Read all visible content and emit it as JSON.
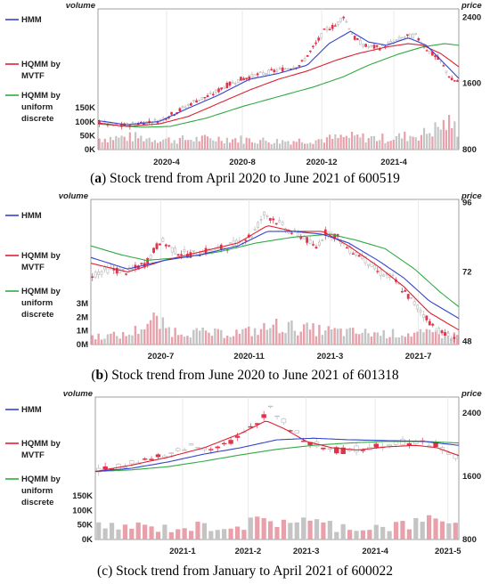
{
  "chart_data": [
    {
      "type": "candlestick",
      "panel_label": "a",
      "caption": "Stock trend from April 2020 to June 2021 of 600519",
      "volume_label": "volume",
      "price_label": "price",
      "legend": [
        "HMM",
        "HQMM by MVTF",
        "HQMM by uniform discrete"
      ],
      "colors": {
        "HMM": "#3344cc",
        "HQMM by MVTF": "#dd2233",
        "HQMM by uniform discrete": "#33aa44",
        "up": "#e0334a",
        "down": "#b8b8b8",
        "volume_up": "#e8a0aa",
        "volume_down": "#c4c4c4"
      },
      "x_ticks": [
        "2020-4",
        "2020-8",
        "2020-12",
        "2021-4"
      ],
      "x_tick_pos": [
        0.19,
        0.4,
        0.62,
        0.82
      ],
      "price_ticks": [
        "2400",
        "1600",
        "800"
      ],
      "price_tick_values": [
        2400,
        1600,
        800
      ],
      "price_range": [
        800,
        2500
      ],
      "volume_ticks": [
        "150K",
        "100K",
        "50K",
        "0K"
      ],
      "volume_tick_values": [
        150,
        100,
        50,
        0
      ],
      "volume_range": [
        0,
        160
      ],
      "price_path": [
        [
          0,
          1130
        ],
        [
          0.06,
          1080
        ],
        [
          0.1,
          1110
        ],
        [
          0.17,
          1150
        ],
        [
          0.22,
          1260
        ],
        [
          0.27,
          1390
        ],
        [
          0.31,
          1450
        ],
        [
          0.35,
          1560
        ],
        [
          0.39,
          1640
        ],
        [
          0.44,
          1700
        ],
        [
          0.5,
          1760
        ],
        [
          0.56,
          1820
        ],
        [
          0.6,
          2050
        ],
        [
          0.63,
          2250
        ],
        [
          0.66,
          2300
        ],
        [
          0.68,
          2420
        ],
        [
          0.71,
          2150
        ],
        [
          0.74,
          2050
        ],
        [
          0.78,
          2030
        ],
        [
          0.82,
          2100
        ],
        [
          0.85,
          2160
        ],
        [
          0.88,
          2180
        ],
        [
          0.91,
          2020
        ],
        [
          0.95,
          1860
        ],
        [
          0.98,
          1640
        ],
        [
          1,
          1620
        ]
      ],
      "hmm_path": [
        [
          0,
          1150
        ],
        [
          0.08,
          1100
        ],
        [
          0.17,
          1140
        ],
        [
          0.25,
          1300
        ],
        [
          0.33,
          1450
        ],
        [
          0.42,
          1650
        ],
        [
          0.5,
          1720
        ],
        [
          0.58,
          1820
        ],
        [
          0.64,
          2080
        ],
        [
          0.7,
          2230
        ],
        [
          0.75,
          2100
        ],
        [
          0.8,
          2060
        ],
        [
          0.86,
          2150
        ],
        [
          0.91,
          2060
        ],
        [
          0.96,
          1840
        ],
        [
          1,
          1660
        ]
      ],
      "mvtf_path": [
        [
          0,
          1120
        ],
        [
          0.08,
          1080
        ],
        [
          0.17,
          1110
        ],
        [
          0.25,
          1200
        ],
        [
          0.33,
          1350
        ],
        [
          0.42,
          1520
        ],
        [
          0.5,
          1650
        ],
        [
          0.58,
          1750
        ],
        [
          0.66,
          1880
        ],
        [
          0.72,
          1960
        ],
        [
          0.8,
          2040
        ],
        [
          0.86,
          2080
        ],
        [
          0.9,
          2060
        ],
        [
          0.95,
          1960
        ],
        [
          1,
          1800
        ]
      ],
      "uniform_path": [
        [
          0,
          1110
        ],
        [
          0.12,
          1070
        ],
        [
          0.2,
          1080
        ],
        [
          0.3,
          1180
        ],
        [
          0.4,
          1320
        ],
        [
          0.5,
          1440
        ],
        [
          0.6,
          1560
        ],
        [
          0.68,
          1680
        ],
        [
          0.75,
          1820
        ],
        [
          0.83,
          1950
        ],
        [
          0.9,
          2040
        ],
        [
          0.96,
          2080
        ],
        [
          1,
          2060
        ]
      ],
      "volume_profile": [
        [
          0,
          40
        ],
        [
          0.1,
          45
        ],
        [
          0.2,
          35
        ],
        [
          0.35,
          40
        ],
        [
          0.5,
          30
        ],
        [
          0.6,
          35
        ],
        [
          0.7,
          45
        ],
        [
          0.8,
          40
        ],
        [
          0.9,
          55
        ],
        [
          0.97,
          95
        ],
        [
          1,
          70
        ]
      ]
    },
    {
      "type": "candlestick",
      "panel_label": "b",
      "caption": "Stock trend from June 2020 to June 2021 of 601318",
      "volume_label": "volume",
      "price_label": "price",
      "legend": [
        "HMM",
        "HQMM by MVTF",
        "HQMM by uniform discrete"
      ],
      "colors": {
        "HMM": "#3344cc",
        "HQMM by MVTF": "#dd2233",
        "HQMM by uniform discrete": "#33aa44",
        "up": "#e0334a",
        "down": "#b8b8b8",
        "volume_up": "#e8a0aa",
        "volume_down": "#c4c4c4"
      },
      "x_ticks": [
        "2020-7",
        "2020-11",
        "2021-3",
        "2021-7"
      ],
      "x_tick_pos": [
        0.19,
        0.43,
        0.65,
        0.89
      ],
      "price_ticks": [
        "96",
        "72",
        "48"
      ],
      "price_tick_values": [
        96,
        72,
        48
      ],
      "price_range": [
        47,
        97
      ],
      "volume_ticks": [
        "3M",
        "2M",
        "1M",
        "0M"
      ],
      "volume_tick_values": [
        3,
        2,
        1,
        0
      ],
      "volume_range": [
        0,
        3.6
      ],
      "price_path": [
        [
          0,
          71
        ],
        [
          0.05,
          73
        ],
        [
          0.1,
          72
        ],
        [
          0.15,
          75
        ],
        [
          0.19,
          83
        ],
        [
          0.23,
          79
        ],
        [
          0.27,
          78
        ],
        [
          0.31,
          79
        ],
        [
          0.35,
          80
        ],
        [
          0.4,
          82
        ],
        [
          0.44,
          85
        ],
        [
          0.47,
          92
        ],
        [
          0.5,
          90
        ],
        [
          0.54,
          86
        ],
        [
          0.58,
          84
        ],
        [
          0.61,
          80
        ],
        [
          0.64,
          86
        ],
        [
          0.67,
          84
        ],
        [
          0.7,
          80
        ],
        [
          0.74,
          77
        ],
        [
          0.78,
          72
        ],
        [
          0.82,
          70
        ],
        [
          0.86,
          64
        ],
        [
          0.9,
          58
        ],
        [
          0.94,
          52
        ],
        [
          0.97,
          50
        ],
        [
          1,
          49
        ]
      ],
      "hmm_path": [
        [
          0,
          77
        ],
        [
          0.1,
          73
        ],
        [
          0.2,
          76
        ],
        [
          0.3,
          78
        ],
        [
          0.4,
          81
        ],
        [
          0.48,
          86
        ],
        [
          0.55,
          86
        ],
        [
          0.63,
          85
        ],
        [
          0.7,
          82
        ],
        [
          0.78,
          76
        ],
        [
          0.85,
          70
        ],
        [
          0.92,
          62
        ],
        [
          1,
          56
        ]
      ],
      "mvtf_path": [
        [
          0,
          75
        ],
        [
          0.1,
          72
        ],
        [
          0.2,
          76
        ],
        [
          0.3,
          79
        ],
        [
          0.4,
          82
        ],
        [
          0.48,
          88
        ],
        [
          0.55,
          86
        ],
        [
          0.63,
          86
        ],
        [
          0.7,
          81
        ],
        [
          0.78,
          74
        ],
        [
          0.85,
          67
        ],
        [
          0.92,
          58
        ],
        [
          1,
          52
        ]
      ],
      "uniform_path": [
        [
          0,
          81
        ],
        [
          0.08,
          78
        ],
        [
          0.15,
          76
        ],
        [
          0.25,
          77
        ],
        [
          0.35,
          79
        ],
        [
          0.45,
          82
        ],
        [
          0.55,
          84
        ],
        [
          0.65,
          85
        ],
        [
          0.72,
          83
        ],
        [
          0.8,
          80
        ],
        [
          0.88,
          73
        ],
        [
          0.95,
          65
        ],
        [
          1,
          60
        ]
      ],
      "volume_profile": [
        [
          0,
          0.6
        ],
        [
          0.1,
          0.7
        ],
        [
          0.17,
          1.8
        ],
        [
          0.22,
          1.0
        ],
        [
          0.35,
          0.8
        ],
        [
          0.45,
          1.0
        ],
        [
          0.5,
          1.4
        ],
        [
          0.6,
          1.1
        ],
        [
          0.7,
          0.9
        ],
        [
          0.8,
          0.8
        ],
        [
          0.9,
          0.8
        ],
        [
          1,
          0.7
        ]
      ]
    },
    {
      "type": "candlestick",
      "panel_label": "c",
      "caption": "Stock trend from January to April 2021 of 600022",
      "volume_label": "volume",
      "price_label": "price",
      "legend": [
        "HMM",
        "HQMM by MVTF",
        "HQMM by uniform discrete"
      ],
      "colors": {
        "HMM": "#3344cc",
        "HQMM by MVTF": "#dd2233",
        "HQMM by uniform discrete": "#33aa44",
        "up": "#e0334a",
        "down": "#b8b8b8",
        "volume_up": "#e8a0aa",
        "volume_down": "#c4c4c4"
      },
      "x_ticks": [
        "2021-1",
        "2021-2",
        "2021-3",
        "2021-4",
        "2021-5"
      ],
      "x_tick_pos": [
        0.24,
        0.42,
        0.58,
        0.77,
        0.97
      ],
      "price_ticks": [
        "2400",
        "1600",
        "800"
      ],
      "price_tick_values": [
        2400,
        1600,
        800
      ],
      "price_range": [
        800,
        2600
      ],
      "volume_ticks": [
        "150K",
        "100K",
        "50K",
        "0K"
      ],
      "volume_tick_values": [
        150,
        100,
        50,
        0
      ],
      "volume_range": [
        0,
        165
      ],
      "price_path": [
        [
          0,
          1660
        ],
        [
          0.05,
          1700
        ],
        [
          0.1,
          1780
        ],
        [
          0.15,
          1820
        ],
        [
          0.2,
          1840
        ],
        [
          0.25,
          1980
        ],
        [
          0.3,
          1960
        ],
        [
          0.35,
          2000
        ],
        [
          0.4,
          2100
        ],
        [
          0.45,
          2280
        ],
        [
          0.48,
          2500
        ],
        [
          0.51,
          2320
        ],
        [
          0.55,
          2150
        ],
        [
          0.59,
          2020
        ],
        [
          0.63,
          1960
        ],
        [
          0.67,
          1920
        ],
        [
          0.71,
          1930
        ],
        [
          0.75,
          1970
        ],
        [
          0.8,
          2010
        ],
        [
          0.85,
          2040
        ],
        [
          0.9,
          2010
        ],
        [
          0.94,
          2000
        ],
        [
          0.97,
          1880
        ],
        [
          1,
          1840
        ]
      ],
      "hmm_path": [
        [
          0,
          1660
        ],
        [
          0.1,
          1700
        ],
        [
          0.2,
          1780
        ],
        [
          0.3,
          1880
        ],
        [
          0.4,
          1960
        ],
        [
          0.5,
          2060
        ],
        [
          0.6,
          2080
        ],
        [
          0.7,
          2060
        ],
        [
          0.8,
          2050
        ],
        [
          0.9,
          2040
        ],
        [
          1,
          1990
        ]
      ],
      "mvtf_path": [
        [
          0,
          1660
        ],
        [
          0.1,
          1740
        ],
        [
          0.2,
          1840
        ],
        [
          0.3,
          1960
        ],
        [
          0.4,
          2140
        ],
        [
          0.47,
          2300
        ],
        [
          0.52,
          2200
        ],
        [
          0.58,
          2040
        ],
        [
          0.65,
          1960
        ],
        [
          0.72,
          1930
        ],
        [
          0.8,
          1970
        ],
        [
          0.88,
          1990
        ],
        [
          0.94,
          1960
        ],
        [
          1,
          1860
        ]
      ],
      "uniform_path": [
        [
          0,
          1660
        ],
        [
          0.1,
          1680
        ],
        [
          0.2,
          1720
        ],
        [
          0.3,
          1790
        ],
        [
          0.4,
          1870
        ],
        [
          0.5,
          1940
        ],
        [
          0.6,
          1990
        ],
        [
          0.7,
          2020
        ],
        [
          0.8,
          2040
        ],
        [
          0.9,
          2040
        ],
        [
          1,
          2020
        ]
      ],
      "volume_profile": [
        [
          0,
          40
        ],
        [
          0.1,
          45
        ],
        [
          0.2,
          38
        ],
        [
          0.3,
          45
        ],
        [
          0.4,
          50
        ],
        [
          0.5,
          65
        ],
        [
          0.55,
          72
        ],
        [
          0.6,
          55
        ],
        [
          0.7,
          42
        ],
        [
          0.8,
          45
        ],
        [
          0.9,
          55
        ],
        [
          0.95,
          90
        ],
        [
          1,
          50
        ]
      ]
    }
  ]
}
